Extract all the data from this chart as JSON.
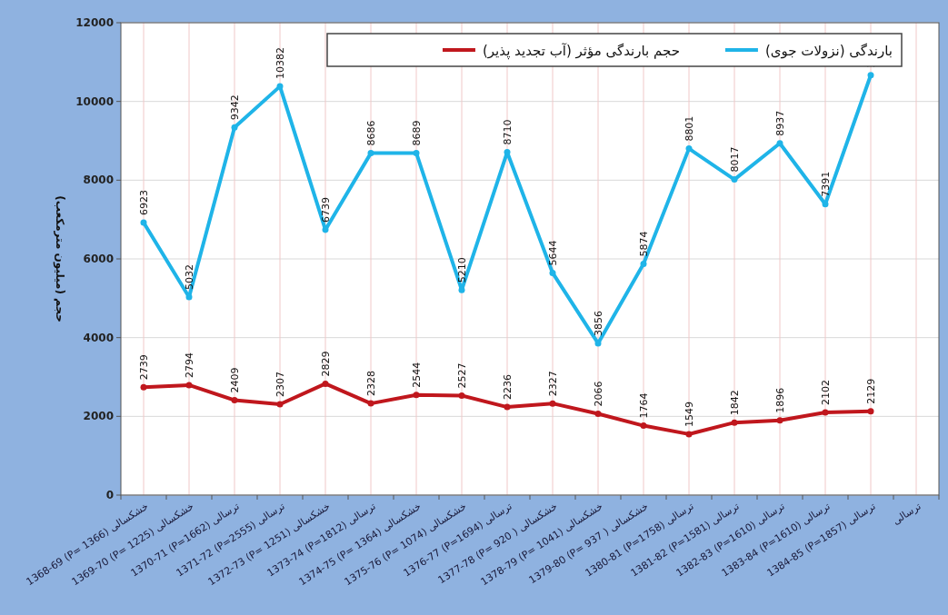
{
  "chart_data": {
    "type": "line",
    "ylabel": "حجم (میلیون مترمکعب)",
    "categories": [
      "1368-69 (P= 1366) خشکسالی",
      "1369-70 (P= 1225) خشکسالی",
      "1370-71 (P=1662) ترسالی",
      "1371-72 (P=2555) ترسالی",
      "1372-73 (P= 1251) خشکسالی",
      "1373-74 (P=1812) ترسالی",
      "1374-75 (P= 1364) خشکسالی",
      "1375-76 (P= 1074) خشکسالی",
      "1376-77 (P=1694) ترسالی",
      "1377-78 (P= 920 ) خشکسالی",
      "1378-79 (P= 1041) خشکسالی",
      "1379-80 (P= 937 ) خشکسالی",
      "1380-81 (P=1758) ترسالی",
      "1381-82 (P=1581) ترسالی",
      "1382-83 (P=1610) ترسالی",
      "1383-84 (P=1610) ترسالی",
      "1384-85 (P=1857) ترسالی",
      "ترسالی"
    ],
    "series": [
      {
        "name": "بارندگی (نزولات جوی)",
        "color": "#1fb4e8",
        "values": [
          6923,
          5032,
          9342,
          10382,
          6739,
          8686,
          8689,
          5210,
          8710,
          5644,
          3856,
          5874,
          8801,
          8017,
          8937,
          7391,
          10668,
          null
        ]
      },
      {
        "name": "حجم بارندگی مؤثر (آب تجدید پذیر)",
        "color": "#c0171d",
        "values": [
          2739,
          2794,
          2409,
          2307,
          2829,
          2328,
          2544,
          2527,
          2236,
          2327,
          2066,
          1764,
          1549,
          1842,
          1896,
          2102,
          2129,
          null
        ]
      }
    ],
    "ylim": [
      0,
      12000
    ],
    "yticks": [
      0,
      2000,
      4000,
      6000,
      8000,
      10000,
      12000
    ],
    "grid": true,
    "legend": "top right",
    "marker": "circle",
    "line_style": "solid",
    "data_labels": true
  }
}
